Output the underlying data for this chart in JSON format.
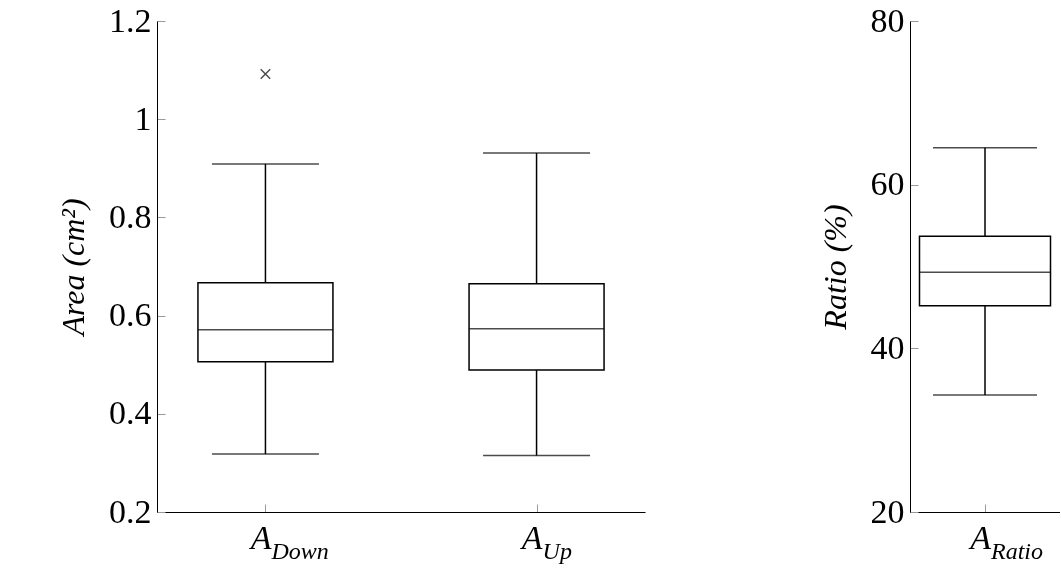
{
  "chart_data": [
    {
      "type": "box",
      "ylabel": "Area (cm²)",
      "categories": [
        "A$_{Down}$",
        "A$_{Up}$"
      ],
      "boxes": [
        {
          "low": 0.318,
          "q1": 0.506,
          "median": 0.571,
          "q3": 0.667,
          "high": 0.909,
          "outliers": [
            1.092
          ]
        },
        {
          "low": 0.315,
          "q1": 0.489,
          "median": 0.573,
          "q3": 0.665,
          "high": 0.931
        }
      ],
      "ylim": [
        0.2,
        1.2
      ],
      "yticks": [
        0.2,
        0.4,
        0.6,
        0.8,
        1,
        1.2
      ]
    },
    {
      "type": "box",
      "ylabel": "Ratio (%)",
      "categories": [
        "A$_{Ratio}$"
      ],
      "boxes": [
        {
          "low": 34.3,
          "q1": 45.2,
          "median": 49.3,
          "q3": 53.7,
          "high": 64.5
        }
      ],
      "ylim": [
        20,
        80
      ],
      "yticks": [
        20,
        40,
        60,
        80
      ]
    }
  ]
}
